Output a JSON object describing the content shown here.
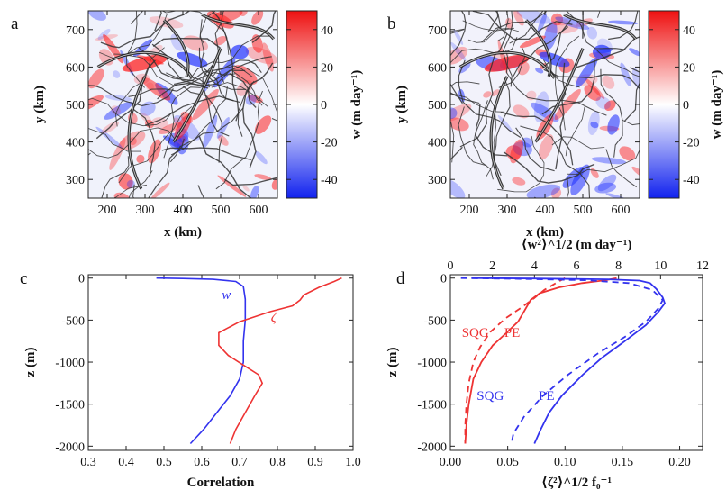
{
  "panels": [
    "a",
    "b",
    "c",
    "d"
  ],
  "chart_data": [
    {
      "panel": "a",
      "type": "heatmap",
      "xlabel": "x (km)",
      "ylabel": "y (km)",
      "xticks": [
        200,
        300,
        400,
        500,
        600
      ],
      "yticks": [
        300,
        400,
        500,
        600,
        700
      ],
      "xlim": [
        150,
        650
      ],
      "ylim": [
        250,
        750
      ],
      "colorbar": {
        "label": "w (m day⁻¹)",
        "ticks": [
          40,
          20,
          0,
          -20,
          -40
        ],
        "range": [
          -50,
          50
        ],
        "colors": {
          "neg": "#2233ff",
          "mid": "#ffffff",
          "pos": "#ff2222"
        }
      }
    },
    {
      "panel": "b",
      "type": "heatmap",
      "xlabel": "x (km)",
      "ylabel": "y (km)",
      "xticks": [
        200,
        300,
        400,
        500,
        600
      ],
      "yticks": [
        300,
        400,
        500,
        600,
        700
      ],
      "xlim": [
        150,
        650
      ],
      "ylim": [
        250,
        750
      ],
      "colorbar": {
        "label": "w (m day⁻¹)",
        "ticks": [
          40,
          20,
          0,
          -20,
          -40
        ],
        "range": [
          -50,
          50
        ],
        "colors": {
          "neg": "#2233ff",
          "mid": "#ffffff",
          "pos": "#ff2222"
        }
      }
    },
    {
      "panel": "c",
      "type": "line",
      "xlabel": "Correlation",
      "ylabel": "z (m)",
      "xticks": [
        0.3,
        0.4,
        0.5,
        0.6,
        0.7,
        0.8,
        0.9,
        1.0
      ],
      "xtick_labels": [
        "0.3",
        "0.4",
        "0.5",
        "0.6",
        "0.7",
        "0.8",
        "0.9",
        "1.0"
      ],
      "yticks": [
        0,
        -500,
        -1000,
        -1500,
        -2000
      ],
      "xlim": [
        0.3,
        1.0
      ],
      "ylim": [
        -2050,
        40
      ],
      "series": [
        {
          "name": "w",
          "color": "#3333ee",
          "points": [
            [
              0.48,
              0
            ],
            [
              0.55,
              -5
            ],
            [
              0.63,
              -15
            ],
            [
              0.69,
              -40
            ],
            [
              0.71,
              -100
            ],
            [
              0.715,
              -250
            ],
            [
              0.715,
              -500
            ],
            [
              0.71,
              -750
            ],
            [
              0.71,
              -1000
            ],
            [
              0.7,
              -1200
            ],
            [
              0.675,
              -1400
            ],
            [
              0.64,
              -1600
            ],
            [
              0.605,
              -1800
            ],
            [
              0.57,
              -1970
            ]
          ]
        },
        {
          "name": "ζ",
          "color": "#ee3333",
          "points": [
            [
              0.97,
              0
            ],
            [
              0.95,
              -40
            ],
            [
              0.91,
              -110
            ],
            [
              0.87,
              -200
            ],
            [
              0.86,
              -260
            ],
            [
              0.84,
              -330
            ],
            [
              0.78,
              -400
            ],
            [
              0.7,
              -520
            ],
            [
              0.645,
              -650
            ],
            [
              0.645,
              -800
            ],
            [
              0.67,
              -920
            ],
            [
              0.715,
              -1050
            ],
            [
              0.75,
              -1150
            ],
            [
              0.76,
              -1250
            ],
            [
              0.74,
              -1400
            ],
            [
              0.715,
              -1600
            ],
            [
              0.69,
              -1800
            ],
            [
              0.675,
              -1970
            ]
          ]
        }
      ]
    },
    {
      "panel": "d",
      "type": "line",
      "xlabel": "⟨ζ²⟩^1/2 f₀⁻¹",
      "ylabel": "z (m)",
      "top_xlabel": "⟨w²⟩^1/2 (m day⁻¹)",
      "xticks": [
        0.0,
        0.05,
        0.1,
        0.15,
        0.2
      ],
      "xtick_labels": [
        "0.00",
        "0.05",
        "0.10",
        "0.15",
        "0.20"
      ],
      "top_xticks": [
        0,
        2,
        4,
        6,
        8,
        10,
        12
      ],
      "top_xtick_labels": [
        "0",
        "2",
        "4",
        "6",
        "8",
        "10",
        "12"
      ],
      "yticks": [
        0,
        -500,
        -1000,
        -1500,
        -2000
      ],
      "xlim": [
        0,
        0.22
      ],
      "top_xlim": [
        0,
        12
      ],
      "ylim": [
        -2050,
        40
      ],
      "annotations": [
        {
          "text": "SQG",
          "color": "#ee3333"
        },
        {
          "text": "PE",
          "color": "#ee3333"
        },
        {
          "text": "SQG",
          "color": "#3333ee"
        },
        {
          "text": "PE",
          "color": "#3333ee"
        }
      ],
      "series": [
        {
          "name": "PE",
          "quantity": "⟨ζ²⟩^1/2 f₀⁻¹",
          "color": "#ee3333",
          "dash": false,
          "axis": "bottom",
          "points": [
            [
              0.145,
              0
            ],
            [
              0.135,
              -25
            ],
            [
              0.115,
              -60
            ],
            [
              0.095,
              -110
            ],
            [
              0.078,
              -180
            ],
            [
              0.07,
              -260
            ],
            [
              0.065,
              -380
            ],
            [
              0.059,
              -520
            ],
            [
              0.049,
              -650
            ],
            [
              0.037,
              -800
            ],
            [
              0.027,
              -1000
            ],
            [
              0.02,
              -1200
            ],
            [
              0.016,
              -1500
            ],
            [
              0.014,
              -1750
            ],
            [
              0.013,
              -1970
            ]
          ]
        },
        {
          "name": "SQG",
          "quantity": "⟨ζ²⟩^1/2 f₀⁻¹",
          "color": "#ee3333",
          "dash": true,
          "axis": "bottom",
          "points": [
            [
              0.1,
              0
            ],
            [
              0.092,
              -60
            ],
            [
              0.082,
              -140
            ],
            [
              0.073,
              -240
            ],
            [
              0.062,
              -350
            ],
            [
              0.048,
              -480
            ],
            [
              0.035,
              -640
            ],
            [
              0.026,
              -820
            ],
            [
              0.02,
              -1000
            ],
            [
              0.016,
              -1250
            ],
            [
              0.014,
              -1500
            ],
            [
              0.013,
              -1750
            ],
            [
              0.013,
              -1970
            ]
          ]
        },
        {
          "name": "PE",
          "quantity": "⟨w²⟩^1/2",
          "color": "#3333ee",
          "dash": false,
          "axis": "top",
          "points": [
            [
              1.0,
              0
            ],
            [
              4.0,
              -5
            ],
            [
              7.5,
              -15
            ],
            [
              9.0,
              -30
            ],
            [
              9.5,
              -60
            ],
            [
              9.8,
              -130
            ],
            [
              10.1,
              -230
            ],
            [
              10.2,
              -300
            ],
            [
              9.9,
              -400
            ],
            [
              9.3,
              -560
            ],
            [
              8.3,
              -750
            ],
            [
              7.2,
              -950
            ],
            [
              6.3,
              -1150
            ],
            [
              5.3,
              -1400
            ],
            [
              4.7,
              -1600
            ],
            [
              4.3,
              -1800
            ],
            [
              4.0,
              -1970
            ]
          ]
        },
        {
          "name": "SQG",
          "quantity": "⟨w²⟩^1/2",
          "color": "#3333ee",
          "dash": true,
          "axis": "top",
          "points": [
            [
              0.5,
              0
            ],
            [
              3.0,
              -8
            ],
            [
              6.5,
              -25
            ],
            [
              8.5,
              -60
            ],
            [
              9.6,
              -140
            ],
            [
              10.1,
              -260
            ],
            [
              9.9,
              -360
            ],
            [
              9.3,
              -520
            ],
            [
              8.3,
              -700
            ],
            [
              7.0,
              -900
            ],
            [
              5.6,
              -1150
            ],
            [
              4.4,
              -1400
            ],
            [
              3.5,
              -1650
            ],
            [
              3.0,
              -1850
            ],
            [
              2.9,
              -1970
            ]
          ]
        }
      ]
    }
  ]
}
